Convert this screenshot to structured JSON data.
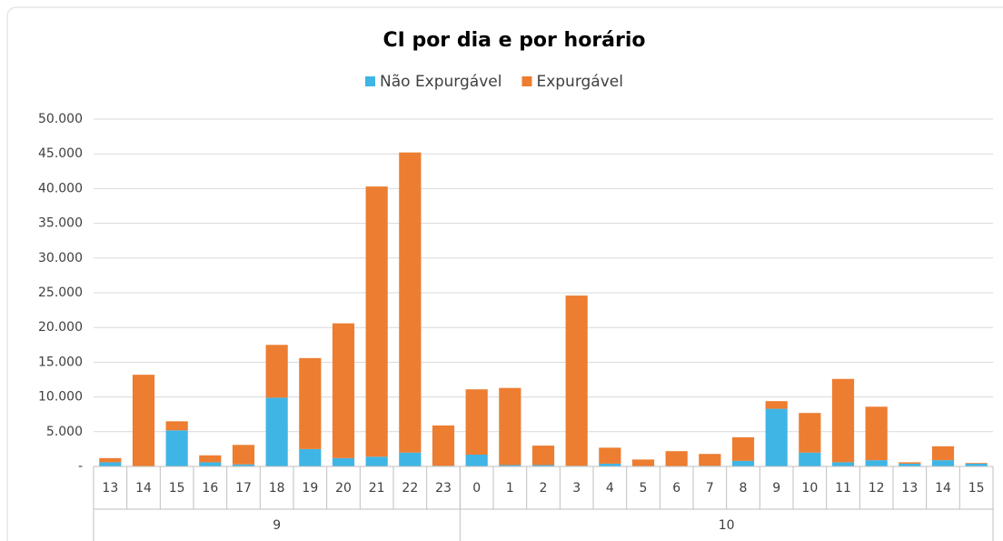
{
  "chart_data": {
    "type": "stacked_bar",
    "title": "CI por dia e por horário",
    "groups": [
      {
        "name": "9",
        "categories": [
          "13",
          "14",
          "15",
          "16",
          "17",
          "18",
          "19",
          "20",
          "21",
          "22",
          "23"
        ]
      },
      {
        "name": "10",
        "categories": [
          "0",
          "1",
          "2",
          "3",
          "4",
          "5",
          "6",
          "7",
          "8",
          "9",
          "10",
          "11",
          "12",
          "13",
          "14",
          "15"
        ]
      }
    ],
    "series": [
      {
        "name": "Não Expurgável",
        "color": "#3fb5e5",
        "values": [
          600,
          0,
          5200,
          600,
          300,
          9900,
          2500,
          1200,
          1400,
          2000,
          100,
          1700,
          200,
          200,
          100,
          400,
          0,
          0,
          100,
          800,
          8300,
          2000,
          600,
          900,
          400,
          900,
          400
        ]
      },
      {
        "name": "Expurgável",
        "color": "#ed7d31",
        "values": [
          600,
          13200,
          1300,
          1000,
          2800,
          7600,
          13100,
          19400,
          38900,
          43200,
          5800,
          9400,
          11100,
          2800,
          24500,
          2300,
          1000,
          2200,
          1700,
          3400,
          1100,
          5700,
          12000,
          7700,
          200,
          2000,
          100
        ]
      }
    ],
    "ylim": [
      0,
      50000
    ],
    "yticks": [
      {
        "value": 0,
        "label": "-"
      },
      {
        "value": 5000,
        "label": "5.000"
      },
      {
        "value": 10000,
        "label": "10.000"
      },
      {
        "value": 15000,
        "label": "15.000"
      },
      {
        "value": 20000,
        "label": "20.000"
      },
      {
        "value": 25000,
        "label": "25.000"
      },
      {
        "value": 30000,
        "label": "30.000"
      },
      {
        "value": 35000,
        "label": "35.000"
      },
      {
        "value": 40000,
        "label": "40.000"
      },
      {
        "value": 45000,
        "label": "45.000"
      },
      {
        "value": 50000,
        "label": "50.000"
      }
    ],
    "grid": true,
    "legend": "top"
  }
}
